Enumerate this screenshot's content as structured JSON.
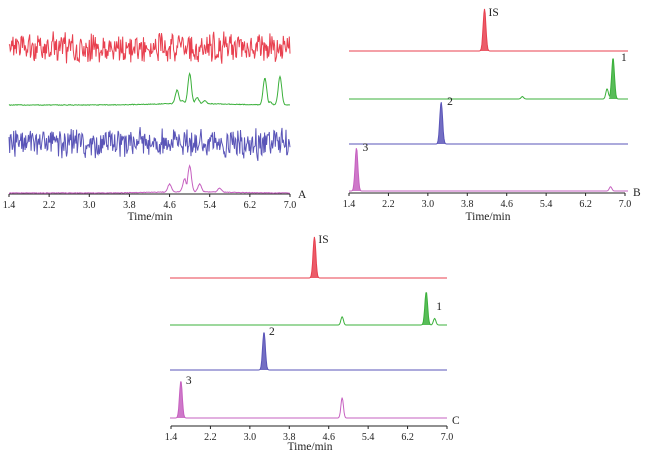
{
  "chart_data": [
    {
      "type": "line",
      "panel": "A",
      "title": "",
      "xlabel": "Time/min",
      "ylabel": "",
      "xlim": [
        1.4,
        7.0
      ],
      "xticks": [
        "1.4",
        "2.2",
        "3.0",
        "3.8",
        "4.6",
        "5.4",
        "6.2",
        "7.0"
      ],
      "grid": false,
      "series": [
        {
          "color": "#e8404f",
          "x": [
            1.4,
            7.0
          ],
          "y": [
            0,
            0
          ],
          "note_shape": "noise"
        },
        {
          "color": "#3bb03b",
          "x": [
            1.4,
            4.6,
            4.75,
            4.85,
            5.0,
            5.15,
            5.3,
            5.6,
            6.5,
            6.6,
            6.8,
            6.9,
            7.0
          ],
          "y": [
            0,
            0.03,
            0.45,
            0.1,
            1.0,
            0.2,
            0.1,
            0.05,
            0.9,
            0.1,
            0.95,
            0.05,
            0
          ]
        },
        {
          "color": "#5a55b8",
          "x": [
            1.4,
            7.0
          ],
          "y": [
            0,
            0
          ],
          "note_shape": "noise"
        },
        {
          "color": "#c660c0",
          "x": [
            1.4,
            4.2,
            4.6,
            4.9,
            5.0,
            5.2,
            5.6,
            6.5,
            7.0
          ],
          "y": [
            0,
            0.05,
            0.3,
            0.5,
            1.0,
            0.3,
            0.15,
            0.05,
            0
          ]
        }
      ]
    },
    {
      "type": "line",
      "panel": "B",
      "title": "",
      "xlabel": "Time/min",
      "ylabel": "",
      "xlim": [
        1.4,
        7.0
      ],
      "xticks": [
        "1.4",
        "2.2",
        "3.0",
        "3.8",
        "4.6",
        "5.4",
        "6.2",
        "7.0"
      ],
      "grid": false,
      "series": [
        {
          "name": "IS",
          "color": "#e8404f",
          "peak_x": 4.12,
          "peak_height": 1.0
        },
        {
          "name": "1",
          "color": "#3bb03b",
          "peak_x": 6.7,
          "peak_height": 1.0,
          "minor_peaks": [
            [
              4.88,
              0.06
            ],
            [
              6.58,
              0.25
            ]
          ]
        },
        {
          "name": "2",
          "color": "#5a55b8",
          "peak_x": 3.25,
          "peak_height": 1.0
        },
        {
          "name": "3",
          "color": "#c660c0",
          "peak_x": 1.55,
          "peak_height": 1.0,
          "minor_peaks": [
            [
              6.65,
              0.1
            ]
          ]
        }
      ]
    },
    {
      "type": "line",
      "panel": "C",
      "title": "",
      "xlabel": "Time/min",
      "ylabel": "",
      "xlim": [
        1.4,
        7.0
      ],
      "xticks": [
        "1.4",
        "2.2",
        "3.0",
        "3.8",
        "4.6",
        "5.4",
        "6.2",
        "7.0"
      ],
      "grid": false,
      "series": [
        {
          "name": "IS",
          "color": "#e8404f",
          "peak_x": 4.32,
          "peak_height": 1.0
        },
        {
          "name": "1",
          "color": "#3bb03b",
          "peak_x": 6.58,
          "peak_height": 1.0,
          "minor_peaks": [
            [
              4.88,
              0.25
            ],
            [
              6.75,
              0.2
            ]
          ]
        },
        {
          "name": "2",
          "color": "#5a55b8",
          "peak_x": 3.3,
          "peak_height": 1.0
        },
        {
          "name": "3",
          "color": "#c660c0",
          "peak_x": 1.62,
          "peak_height": 1.0,
          "minor_peaks": [
            [
              4.88,
              0.55
            ]
          ]
        }
      ]
    }
  ]
}
